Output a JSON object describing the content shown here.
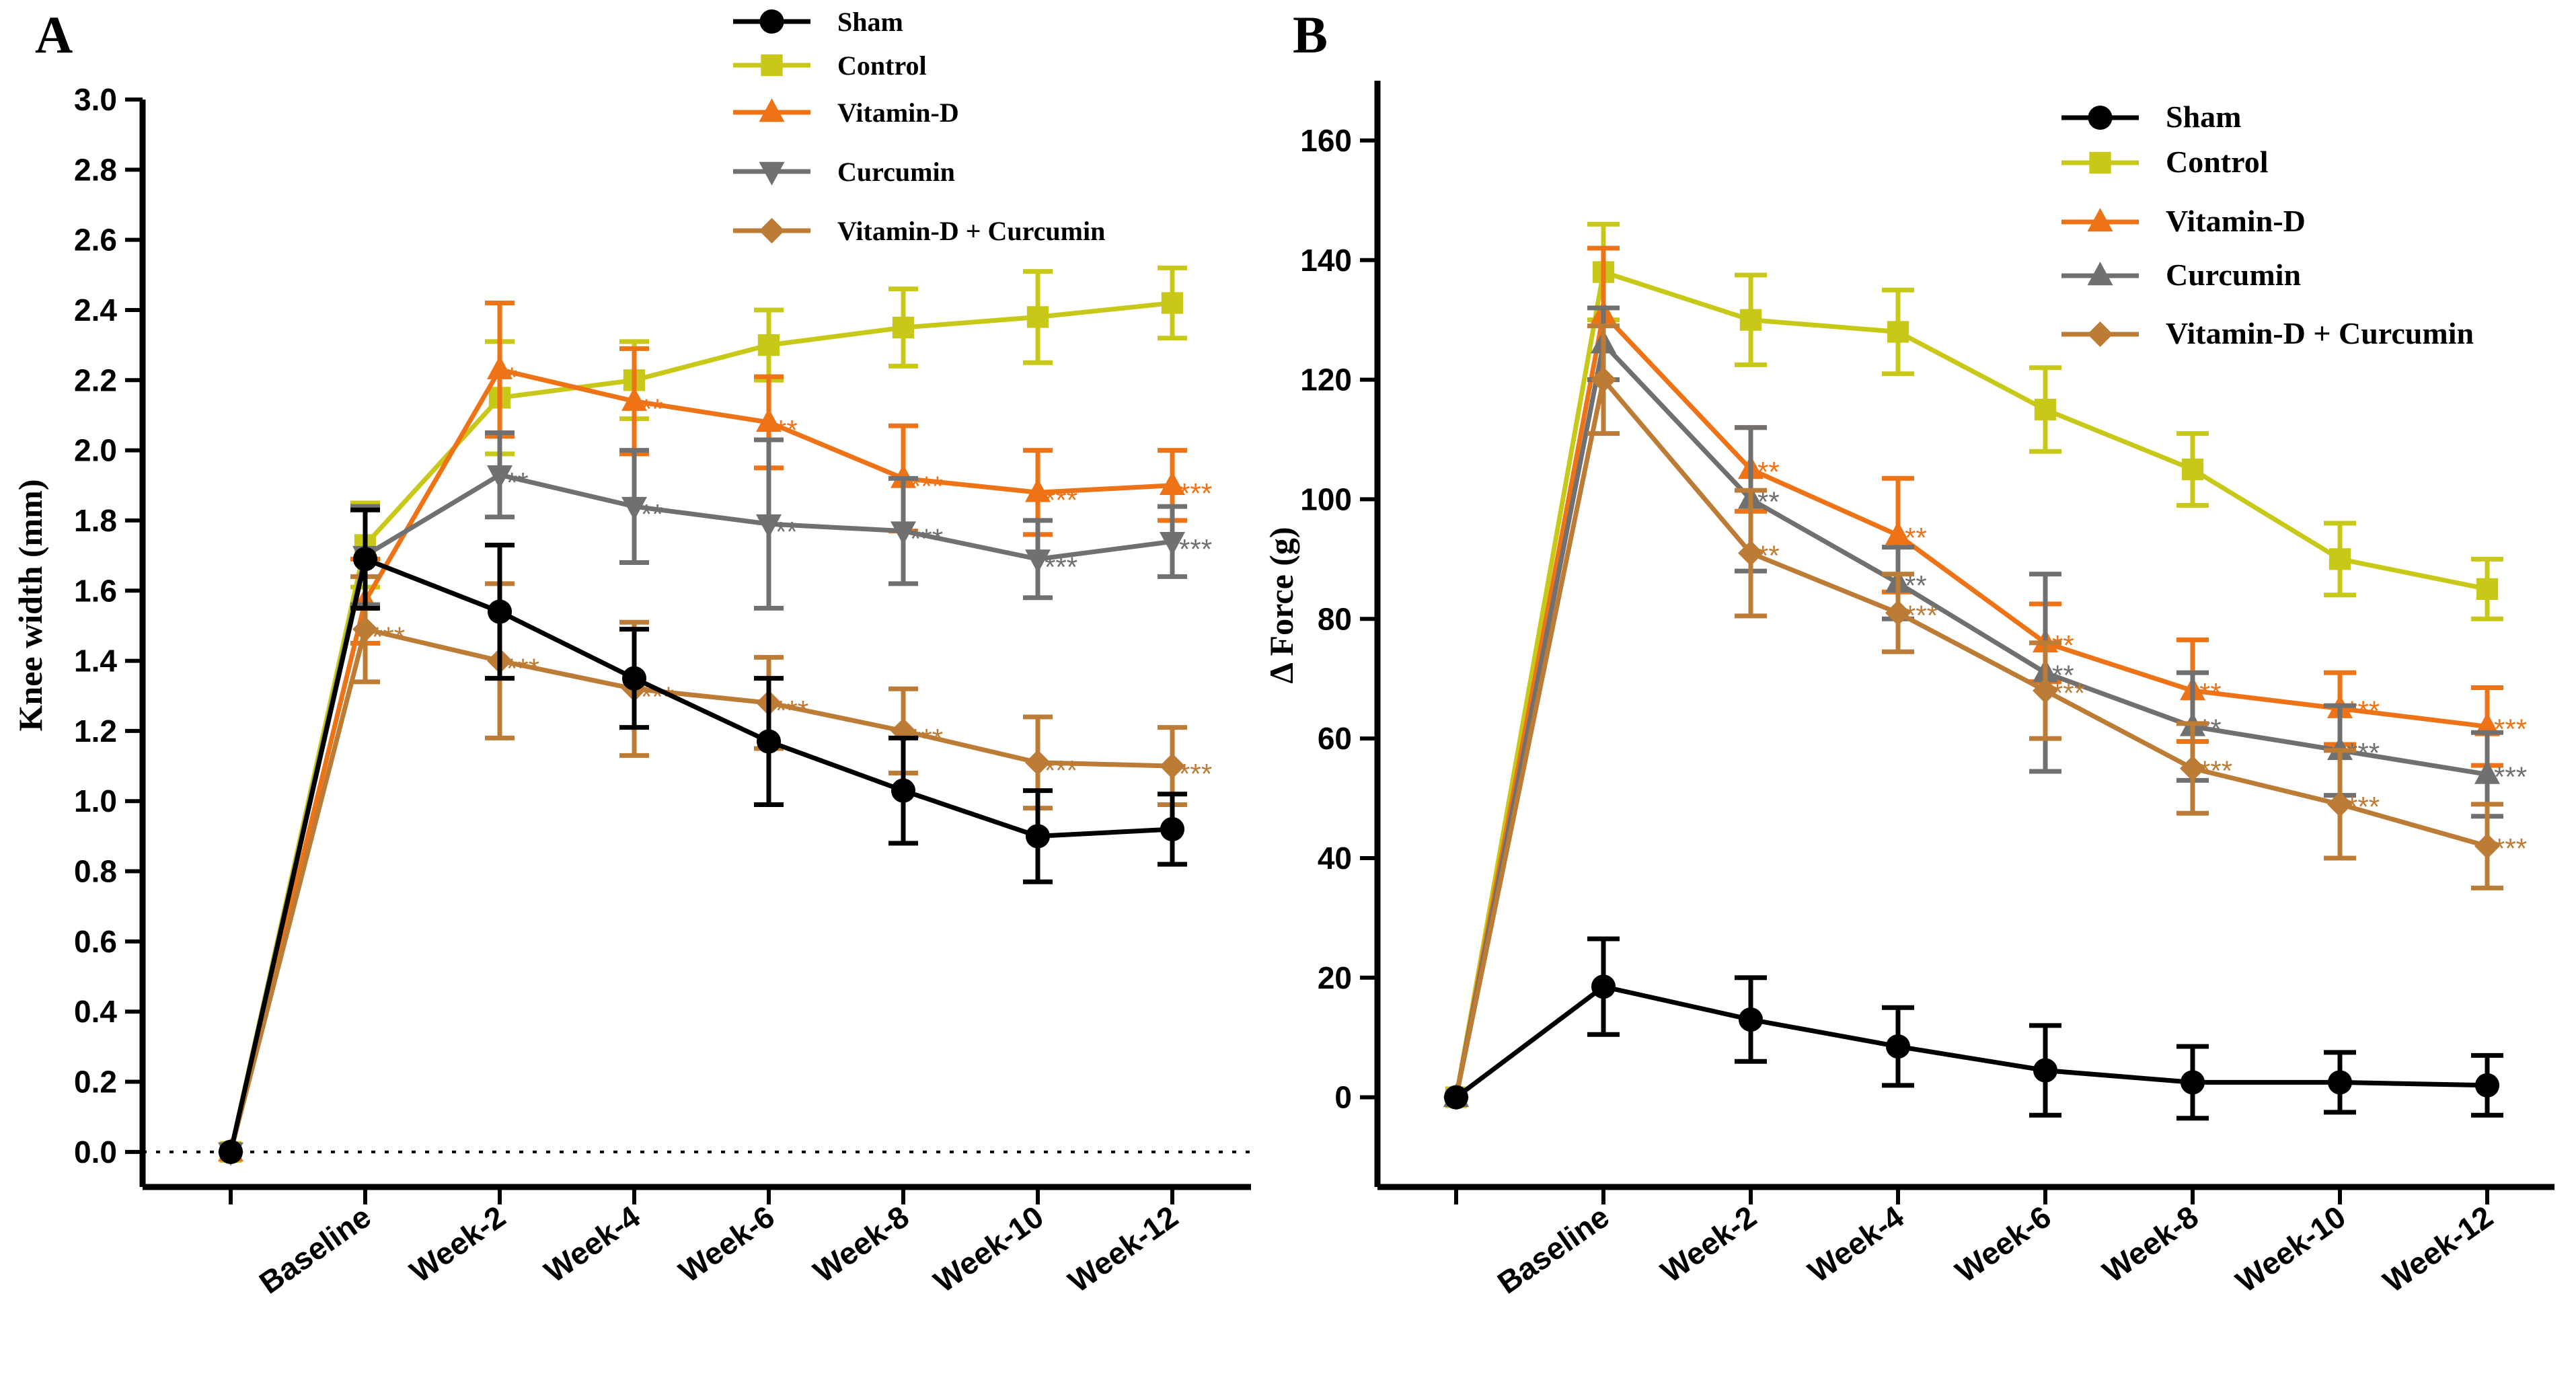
{
  "colors": {
    "Sham": "#000000",
    "Control": "#c8c818",
    "Vitamin-D": "#ee7216",
    "Curcumin": "#707070",
    "Vitamin-D + Curcumin": "#bd7c36",
    "axis": "#000000"
  },
  "chart_data": [
    {
      "panel": "A",
      "type": "line",
      "ylabel": "Knee width (mm)",
      "xlabel": "",
      "categories": [
        "",
        "Baseline",
        "Week-2",
        "Week-4",
        "Week-6",
        "Week-8",
        "Week-10",
        "Week-12"
      ],
      "ylim": [
        0,
        3.0
      ],
      "yticks": [
        "0.0",
        "0.2",
        "0.4",
        "0.6",
        "0.8",
        "1.0",
        "1.2",
        "1.4",
        "1.6",
        "1.8",
        "2.0",
        "2.2",
        "2.4",
        "2.6",
        "2.8",
        "3.0"
      ],
      "ytick_values": [
        0,
        0.2,
        0.4,
        0.6,
        0.8,
        1.0,
        1.2,
        1.4,
        1.6,
        1.8,
        2.0,
        2.2,
        2.4,
        2.6,
        2.8,
        3.0
      ],
      "reference_line": 0,
      "legend_position": "top-center",
      "series": [
        {
          "name": "Control",
          "marker": "square",
          "values": [
            0,
            1.73,
            2.15,
            2.2,
            2.3,
            2.35,
            2.38,
            2.42
          ],
          "errors": [
            0,
            0.12,
            0.16,
            0.11,
            0.1,
            0.11,
            0.13,
            0.1
          ],
          "sig": [
            "",
            "",
            "",
            "",
            "",
            "",
            "",
            ""
          ]
        },
        {
          "name": "Vitamin-D",
          "marker": "triangle-up",
          "values": [
            0,
            1.57,
            2.23,
            2.14,
            2.08,
            1.92,
            1.88,
            1.9
          ],
          "errors": [
            0,
            0.12,
            0.19,
            0.15,
            0.13,
            0.15,
            0.12,
            0.1
          ],
          "sig": [
            "",
            "",
            "*",
            "**",
            "**",
            "***",
            "***",
            "***"
          ]
        },
        {
          "name": "Curcumin",
          "marker": "triangle-down",
          "values": [
            0,
            1.7,
            1.93,
            1.84,
            1.79,
            1.77,
            1.69,
            1.74
          ],
          "errors": [
            0,
            0.14,
            0.12,
            0.16,
            0.24,
            0.15,
            0.11,
            0.1
          ],
          "sig": [
            "",
            "",
            "**",
            "**",
            "**",
            "***",
            "***",
            "***"
          ]
        },
        {
          "name": "Vitamin-D + Curcumin",
          "marker": "diamond",
          "values": [
            0,
            1.49,
            1.4,
            1.32,
            1.28,
            1.2,
            1.11,
            1.1
          ],
          "errors": [
            0,
            0.15,
            0.22,
            0.19,
            0.13,
            0.12,
            0.13,
            0.11
          ],
          "sig": [
            "",
            "***",
            "***",
            "***",
            "***",
            "***",
            "***",
            "***"
          ]
        },
        {
          "name": "Sham",
          "marker": "circle",
          "values": [
            0,
            1.69,
            1.54,
            1.35,
            1.17,
            1.03,
            0.9,
            0.92
          ],
          "errors": [
            0,
            0.14,
            0.19,
            0.14,
            0.18,
            0.15,
            0.13,
            0.1
          ],
          "sig": [
            "",
            "",
            "",
            "",
            "",
            "",
            "",
            ""
          ]
        }
      ],
      "legend_order": [
        "Sham",
        "Control",
        "Vitamin-D",
        "Curcumin",
        "Vitamin-D + Curcumin"
      ]
    },
    {
      "panel": "B",
      "type": "line",
      "ylabel": "Δ Force (g)",
      "xlabel": "",
      "categories": [
        "",
        "Baseline",
        "Week-2",
        "Week-4",
        "Week-6",
        "Week-8",
        "Week-10",
        "Week-12"
      ],
      "ylim": [
        -15,
        170
      ],
      "yticks": [
        "0",
        "20",
        "40",
        "60",
        "80",
        "100",
        "120",
        "140",
        "160"
      ],
      "ytick_values": [
        0,
        20,
        40,
        60,
        80,
        100,
        120,
        140,
        160
      ],
      "legend_position": "top-right",
      "series": [
        {
          "name": "Control",
          "marker": "square",
          "values": [
            0,
            138,
            130,
            128,
            115,
            105,
            90,
            85
          ],
          "errors": [
            0,
            8,
            7.5,
            7,
            7,
            6,
            6,
            5
          ],
          "sig": [
            "",
            "",
            "",
            "",
            "",
            "",
            "",
            ""
          ]
        },
        {
          "name": "Vitamin-D",
          "marker": "triangle-up",
          "values": [
            0,
            131,
            105,
            94,
            76,
            68,
            65,
            62
          ],
          "errors": [
            0,
            11,
            7,
            9.5,
            6.5,
            8.5,
            6,
            6.5
          ],
          "sig": [
            "",
            "",
            "**",
            "**",
            "**",
            "**",
            "***",
            "***"
          ]
        },
        {
          "name": "Curcumin",
          "marker": "triangle-up",
          "values": [
            0,
            126,
            100,
            86,
            71,
            62,
            58,
            54
          ],
          "errors": [
            0,
            6,
            12,
            6,
            16.5,
            9,
            7.5,
            7
          ],
          "sig": [
            "",
            "",
            "**",
            "**",
            "**",
            "**",
            "***",
            "***"
          ]
        },
        {
          "name": "Vitamin-D + Curcumin",
          "marker": "diamond",
          "values": [
            0,
            120,
            91,
            81,
            68,
            55,
            49,
            42
          ],
          "errors": [
            0,
            9,
            10.5,
            6.5,
            8,
            7.5,
            9,
            7
          ],
          "sig": [
            "",
            "",
            "**",
            "***",
            "***",
            "***",
            "***",
            "***"
          ]
        },
        {
          "name": "Sham",
          "marker": "circle",
          "values": [
            0,
            18.5,
            13,
            8.5,
            4.5,
            2.5,
            2.5,
            2
          ],
          "errors": [
            0,
            8,
            7,
            6.5,
            7.5,
            6,
            5,
            5
          ],
          "sig": [
            "",
            "",
            "",
            "",
            "",
            "",
            "",
            ""
          ]
        }
      ],
      "legend_order": [
        "Sham",
        "Control",
        "Vitamin-D",
        "Curcumin",
        "Vitamin-D + Curcumin"
      ]
    }
  ]
}
